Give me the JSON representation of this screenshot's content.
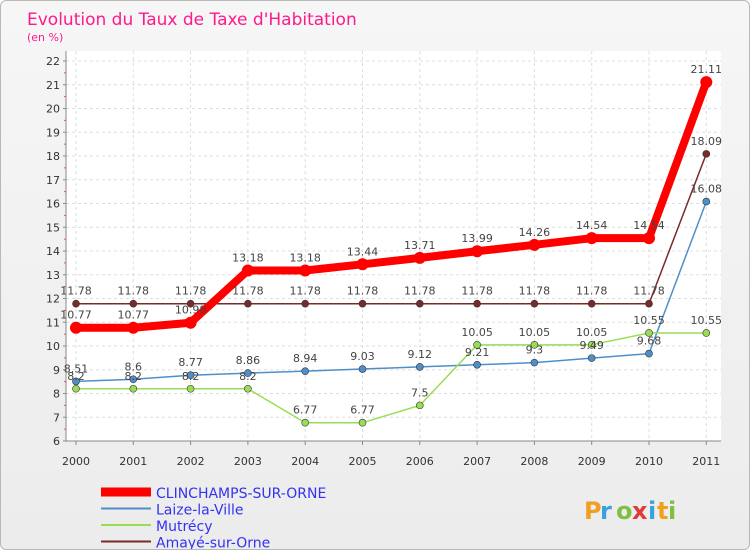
{
  "chart_data": {
    "type": "line",
    "title": "Evolution du Taux de Taxe d'Habitation",
    "subtitle": "(en %)",
    "xlabel": "",
    "ylabel": "",
    "ylim": [
      6,
      22
    ],
    "yticks": [
      "6",
      "7",
      "8",
      "9",
      "10",
      "11",
      "12",
      "13",
      "14",
      "15",
      "16",
      "17",
      "18",
      "19",
      "20",
      "21",
      "22"
    ],
    "categories": [
      "2000",
      "2001",
      "2002",
      "2003",
      "2004",
      "2005",
      "2006",
      "2007",
      "2008",
      "2009",
      "2010",
      "2011"
    ],
    "grid": true,
    "legend_position": "bottom-left",
    "series": [
      {
        "name": "CLINCHAMPS-SUR-ORNE",
        "color": "#ff0000",
        "values": [
          10.77,
          10.77,
          10.98,
          13.18,
          13.18,
          13.44,
          13.71,
          13.99,
          14.26,
          14.54,
          14.54,
          21.11
        ],
        "labels": [
          "10.77",
          "10.77",
          "10.98",
          "13.18",
          "13.18",
          "13.44",
          "13.71",
          "13.99",
          "14.26",
          "14.54",
          "14.54",
          "21.11"
        ]
      },
      {
        "name": "Laize-la-Ville",
        "color": "#4f8fc8",
        "values": [
          8.51,
          8.6,
          8.77,
          8.86,
          8.94,
          9.03,
          9.12,
          9.21,
          9.3,
          9.49,
          9.68,
          16.08
        ],
        "labels": [
          "8.51",
          "8.6",
          "8.77",
          "8.86",
          "8.94",
          "9.03",
          "9.12",
          "9.21",
          "9.3",
          "9.49",
          "9.68",
          "16.08"
        ]
      },
      {
        "name": "Mutrécy",
        "color": "#99dd55",
        "values": [
          8.2,
          8.2,
          8.2,
          8.2,
          6.77,
          6.77,
          7.5,
          10.05,
          10.05,
          10.05,
          10.55,
          10.55
        ],
        "labels": [
          "8.2",
          "8.2",
          "8.2",
          "8.2",
          "6.77",
          "6.77",
          "7.5",
          "10.05",
          "10.05",
          "10.05",
          "10.55",
          "10.55"
        ]
      },
      {
        "name": "Amayé-sur-Orne",
        "color": "#7a2a2a",
        "values": [
          11.78,
          11.78,
          11.78,
          11.78,
          11.78,
          11.78,
          11.78,
          11.78,
          11.78,
          11.78,
          11.78,
          18.09
        ],
        "labels": [
          "11.78",
          "11.78",
          "11.78",
          "11.78",
          "11.78",
          "11.78",
          "11.78",
          "11.78",
          "11.78",
          "11.78",
          "11.78",
          "18.09"
        ]
      }
    ]
  },
  "logo": {
    "text": "Proxiti",
    "letters": [
      "P",
      "r",
      "o",
      "x",
      "i",
      "t",
      "i"
    ],
    "colors": [
      "#f0a020",
      "#3aa0e0",
      "#80c040",
      "#e03a3a",
      "#3aa0e0",
      "#f0a020",
      "#80c040"
    ]
  }
}
